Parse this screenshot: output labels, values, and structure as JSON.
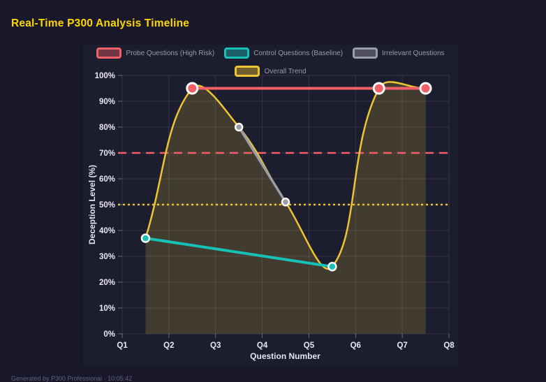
{
  "page": {
    "title": "Real-Time P300 Analysis Timeline",
    "footer": "Generated by P300 Professional · 10:05:42"
  },
  "colors": {
    "background": "#18182a",
    "panel": "#1d1d30",
    "title": "#ffd700",
    "grid": "rgba(255,255,255,0.10)",
    "axis": "rgba(255,255,255,0.35)",
    "tick_label": "#e8e8f2",
    "legend_label": "#9a9aac",
    "probe_red": "#f25f66",
    "control_teal": "#16c2b8",
    "irrelevant_gray": "#9a9ca8",
    "trend_yellow": "#edc531"
  },
  "chart_data": {
    "type": "line",
    "xlabel": "Question Number",
    "ylabel": "Deception Level (%)",
    "x_ticks": [
      "Q1",
      "Q2",
      "Q3",
      "Q4",
      "Q5",
      "Q6",
      "Q7",
      "Q8"
    ],
    "x_range": [
      1,
      8
    ],
    "y_ticks": [
      "0%",
      "10%",
      "20%",
      "30%",
      "40%",
      "50%",
      "60%",
      "70%",
      "80%",
      "90%",
      "100%"
    ],
    "ylim": [
      0,
      100
    ],
    "y_step": 10,
    "grid": true,
    "legend_position": "top",
    "series": [
      {
        "name": "Probe Questions (High Risk)",
        "color": "#f25f66",
        "x": [
          2.5,
          6.5,
          7.5
        ],
        "values": [
          95,
          95,
          95
        ],
        "smooth": false,
        "fill": false,
        "point_radius": 7.5,
        "point_border": 3,
        "line_width": 4
      },
      {
        "name": "Control Questions (Baseline)",
        "color": "#16c2b8",
        "x": [
          1.5,
          5.5
        ],
        "values": [
          37,
          26
        ],
        "smooth": false,
        "fill": false,
        "point_radius": 5.5,
        "point_border": 2.5,
        "line_width": 4
      },
      {
        "name": "Irrelevant Questions",
        "color": "#9a9ca8",
        "x": [
          3.5,
          4.5
        ],
        "values": [
          80,
          51
        ],
        "smooth": false,
        "fill": false,
        "point_radius": 5,
        "point_border": 2.5,
        "line_width": 3.5
      },
      {
        "name": "Overall Trend",
        "color": "#edc531",
        "x": [
          1.5,
          2.5,
          3.5,
          4.5,
          5.5,
          6.5,
          7.5
        ],
        "values": [
          37,
          95,
          80,
          51,
          26,
          95,
          95
        ],
        "smooth": true,
        "fill": true,
        "fill_alpha": 0.18,
        "point_radius": 0,
        "point_border": 0,
        "line_width": 2.5
      }
    ],
    "thresholds": [
      {
        "value": 70,
        "color": "#f25f66",
        "style": "dashed"
      },
      {
        "value": 50,
        "color": "#edc531",
        "style": "dotted"
      }
    ]
  }
}
